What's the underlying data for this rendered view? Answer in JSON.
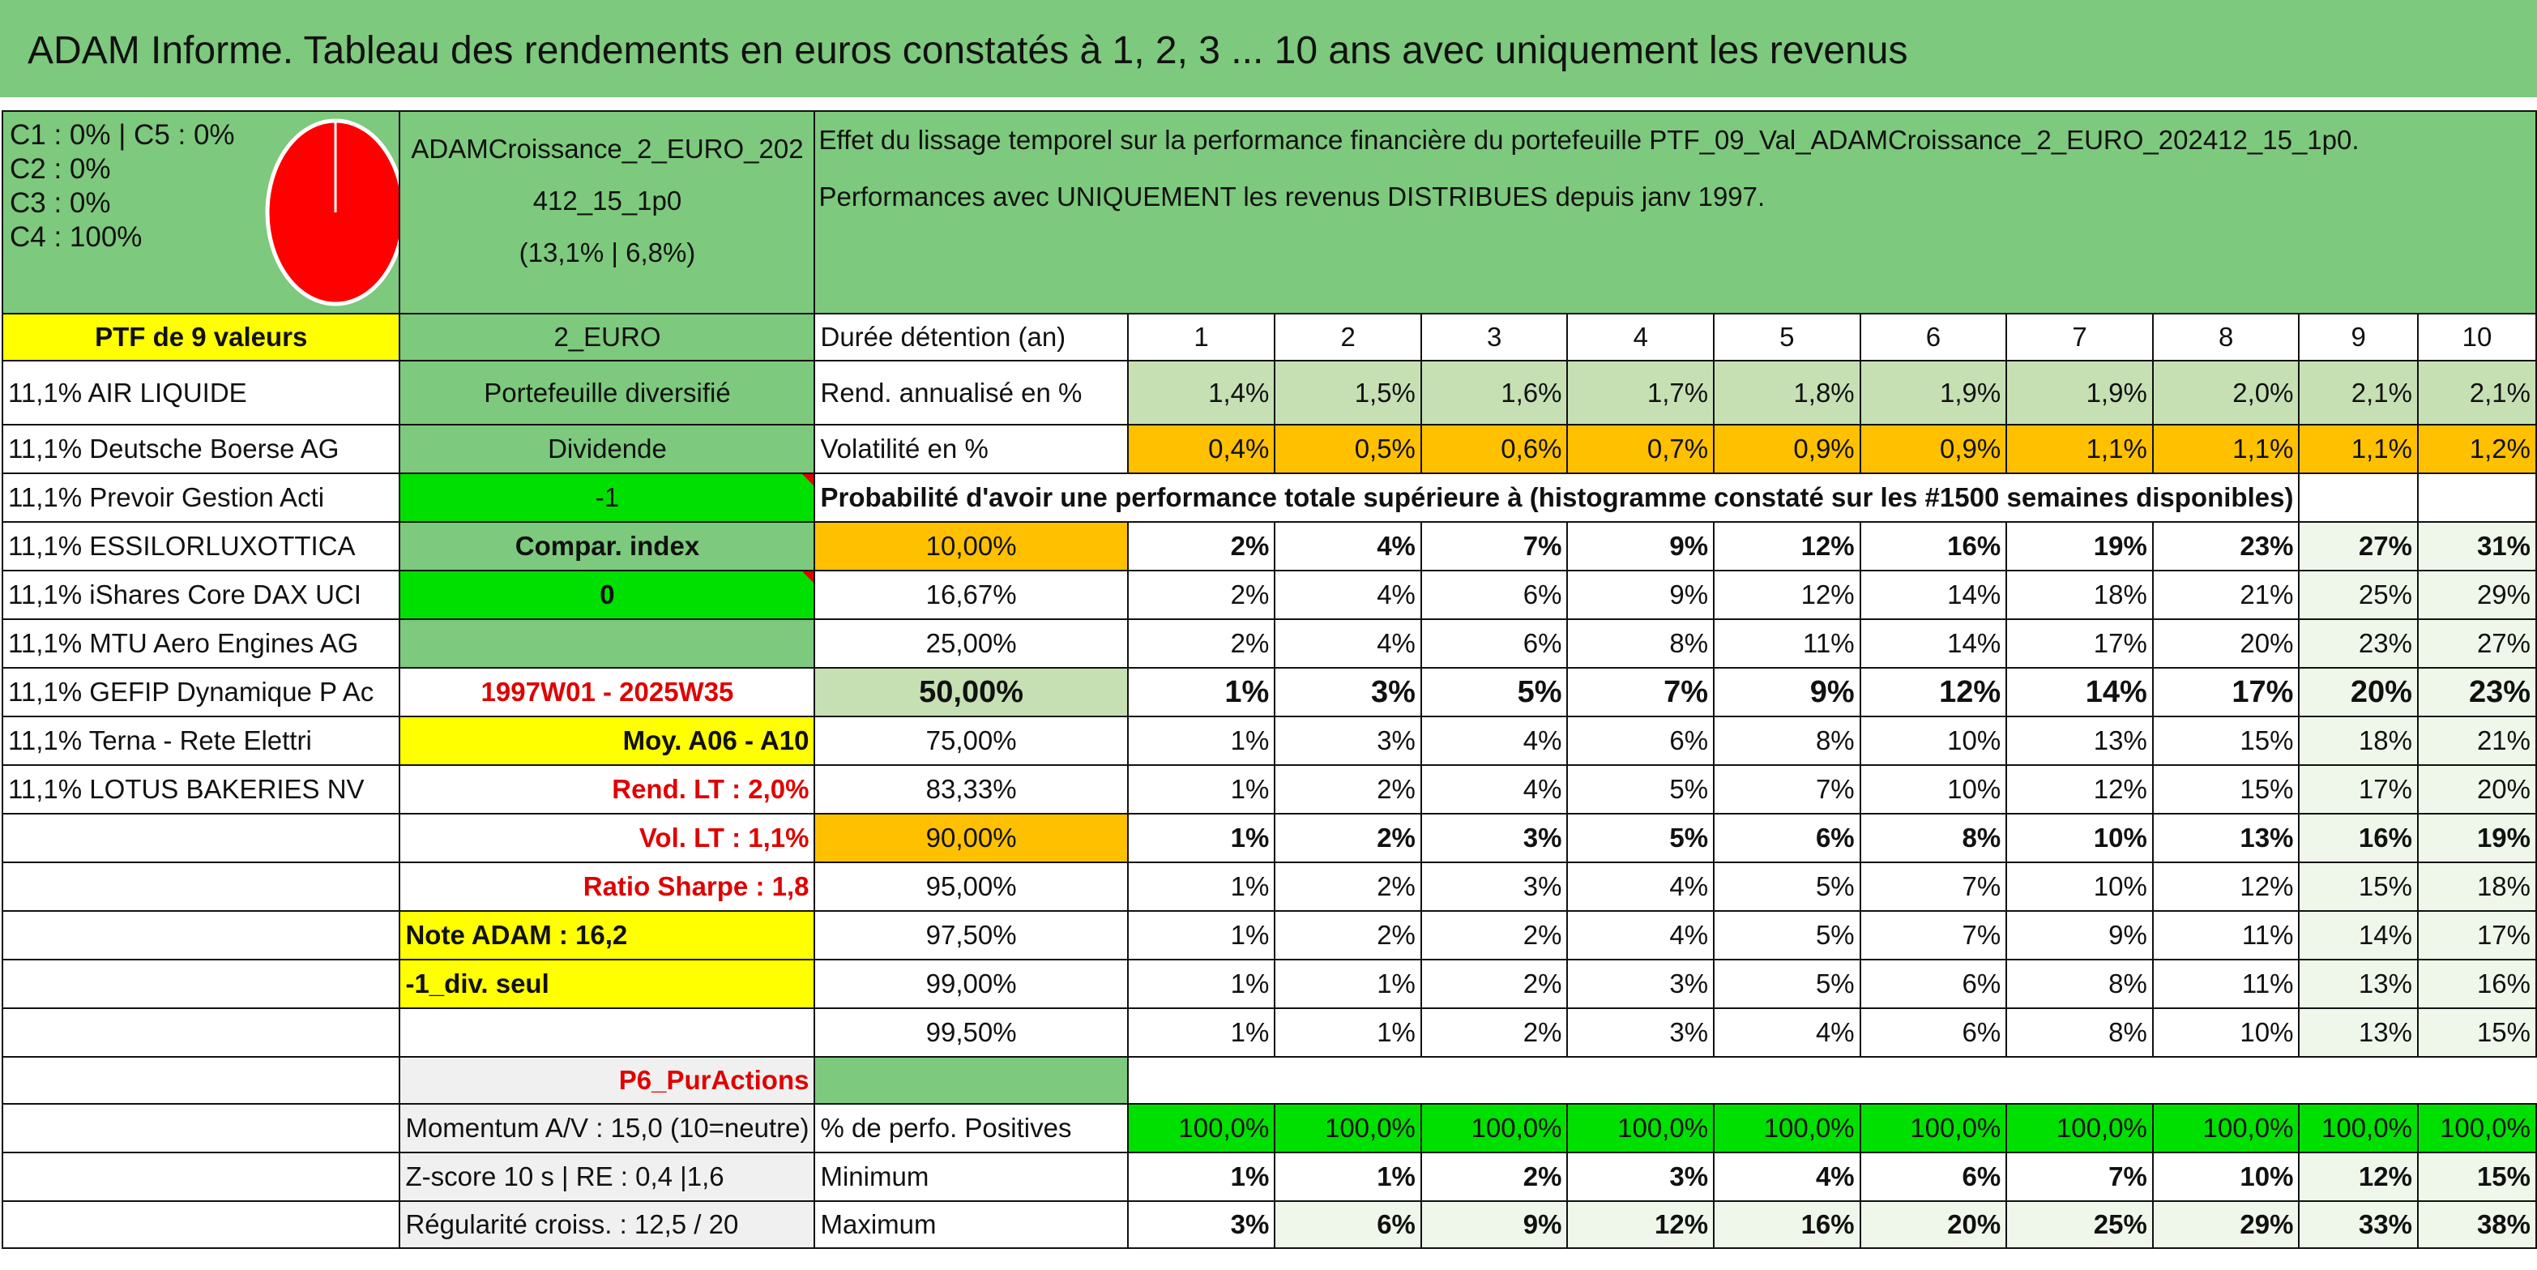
{
  "title": "ADAM Informe. Tableau des rendements en euros constatés à 1, 2, 3 ... 10 ans avec uniquement les revenus",
  "composition": [
    "C1 : 0% | C5 : 0%",
    "C2 : 0%",
    "C3 : 0%",
    "C4 : 100%"
  ],
  "pie_color": "#ff0000",
  "fund_name": "ADAMCroissance_2_EURO_202412_15_1p0",
  "fund_stats": "(13,1% | 6,8%)",
  "description": "Effet du lissage temporel sur la performance financière du portefeuille PTF_09_Val_ADAMCroissance_2_EURO_202412_15_1p0. Performances avec UNIQUEMENT les revenus DISTRIBUES depuis janv 1997.",
  "portfolio_label": "PTF de 9 valeurs",
  "currency_label": "2_EURO",
  "holdings": [
    "11,1% AIR LIQUIDE",
    "11,1% Deutsche Boerse AG",
    "11,1% Prevoir Gestion Acti",
    "11,1% ESSILORLUXOTTICA",
    "11,1% iShares Core DAX UCI",
    "11,1% MTU Aero Engines AG",
    "11,1% GEFIP Dynamique P Ac",
    "11,1% Terna - Rete Elettri",
    "11,1% LOTUS BAKERIES NV"
  ],
  "info": {
    "type": "Portefeuille diversifié",
    "dividend_label": "Dividende",
    "dividend_value": "-1",
    "compar_label": "Compar. index",
    "compar_value": "0",
    "period": "1997W01 - 2025W35",
    "moy": "Moy. A06 - A10",
    "rend_lt": "Rend. LT : 2,0%",
    "vol_lt": "Vol. LT : 1,1%",
    "sharpe": "Ratio Sharpe : 1,8",
    "note": "Note ADAM : 16,2",
    "div_seul": "-1_div. seul",
    "category": "P6_PurActions",
    "momentum": "Momentum A/V : 15,0 (10=neutre)",
    "zscore": "Z-score 10 s | RE : 0,4 |1,6",
    "regularite": "Régularité croiss. : 12,5 / 20"
  },
  "table": {
    "duration_label": "Durée détention (an)",
    "years": [
      "1",
      "2",
      "3",
      "4",
      "5",
      "6",
      "7",
      "8",
      "9",
      "10"
    ],
    "rend_label": "Rend. annualisé en %",
    "rend": [
      "1,4%",
      "1,5%",
      "1,6%",
      "1,7%",
      "1,8%",
      "1,9%",
      "1,9%",
      "2,0%",
      "2,1%",
      "2,1%"
    ],
    "vol_label": "Volatilité en %",
    "vol": [
      "0,4%",
      "0,5%",
      "0,6%",
      "0,7%",
      "0,9%",
      "0,9%",
      "1,1%",
      "1,1%",
      "1,1%",
      "1,2%"
    ],
    "prob_label": "Probabilité d'avoir une performance totale supérieure à (histogramme constaté sur les #1500 semaines disponibles)",
    "prob_rows": [
      {
        "pct": "10,00%",
        "values": [
          "2%",
          "4%",
          "7%",
          "9%",
          "12%",
          "16%",
          "19%",
          "23%",
          "27%",
          "31%"
        ]
      },
      {
        "pct": "16,67%",
        "values": [
          "2%",
          "4%",
          "6%",
          "9%",
          "12%",
          "14%",
          "18%",
          "21%",
          "25%",
          "29%"
        ]
      },
      {
        "pct": "25,00%",
        "values": [
          "2%",
          "4%",
          "6%",
          "8%",
          "11%",
          "14%",
          "17%",
          "20%",
          "23%",
          "27%"
        ]
      },
      {
        "pct": "50,00%",
        "values": [
          "1%",
          "3%",
          "5%",
          "7%",
          "9%",
          "12%",
          "14%",
          "17%",
          "20%",
          "23%"
        ]
      },
      {
        "pct": "75,00%",
        "values": [
          "1%",
          "3%",
          "4%",
          "6%",
          "8%",
          "10%",
          "13%",
          "15%",
          "18%",
          "21%"
        ]
      },
      {
        "pct": "83,33%",
        "values": [
          "1%",
          "2%",
          "4%",
          "5%",
          "7%",
          "10%",
          "12%",
          "15%",
          "17%",
          "20%"
        ]
      },
      {
        "pct": "90,00%",
        "values": [
          "1%",
          "2%",
          "3%",
          "5%",
          "6%",
          "8%",
          "10%",
          "13%",
          "16%",
          "19%"
        ]
      },
      {
        "pct": "95,00%",
        "values": [
          "1%",
          "2%",
          "3%",
          "4%",
          "5%",
          "7%",
          "10%",
          "12%",
          "15%",
          "18%"
        ]
      },
      {
        "pct": "97,50%",
        "values": [
          "1%",
          "2%",
          "2%",
          "4%",
          "5%",
          "7%",
          "9%",
          "11%",
          "14%",
          "17%"
        ]
      },
      {
        "pct": "99,00%",
        "values": [
          "1%",
          "1%",
          "2%",
          "3%",
          "5%",
          "6%",
          "8%",
          "11%",
          "13%",
          "16%"
        ]
      },
      {
        "pct": "99,50%",
        "values": [
          "1%",
          "1%",
          "2%",
          "3%",
          "4%",
          "6%",
          "8%",
          "10%",
          "13%",
          "15%"
        ]
      }
    ],
    "pos_label": "% de perfo. Positives",
    "pos": [
      "100,0%",
      "100,0%",
      "100,0%",
      "100,0%",
      "100,0%",
      "100,0%",
      "100,0%",
      "100,0%",
      "100,0%",
      "100,0%"
    ],
    "min_label": "Minimum",
    "min": [
      "1%",
      "1%",
      "2%",
      "3%",
      "4%",
      "6%",
      "7%",
      "10%",
      "12%",
      "15%"
    ],
    "max_label": "Maximum",
    "max": [
      "3%",
      "6%",
      "9%",
      "12%",
      "16%",
      "20%",
      "25%",
      "29%",
      "33%",
      "38%"
    ]
  }
}
